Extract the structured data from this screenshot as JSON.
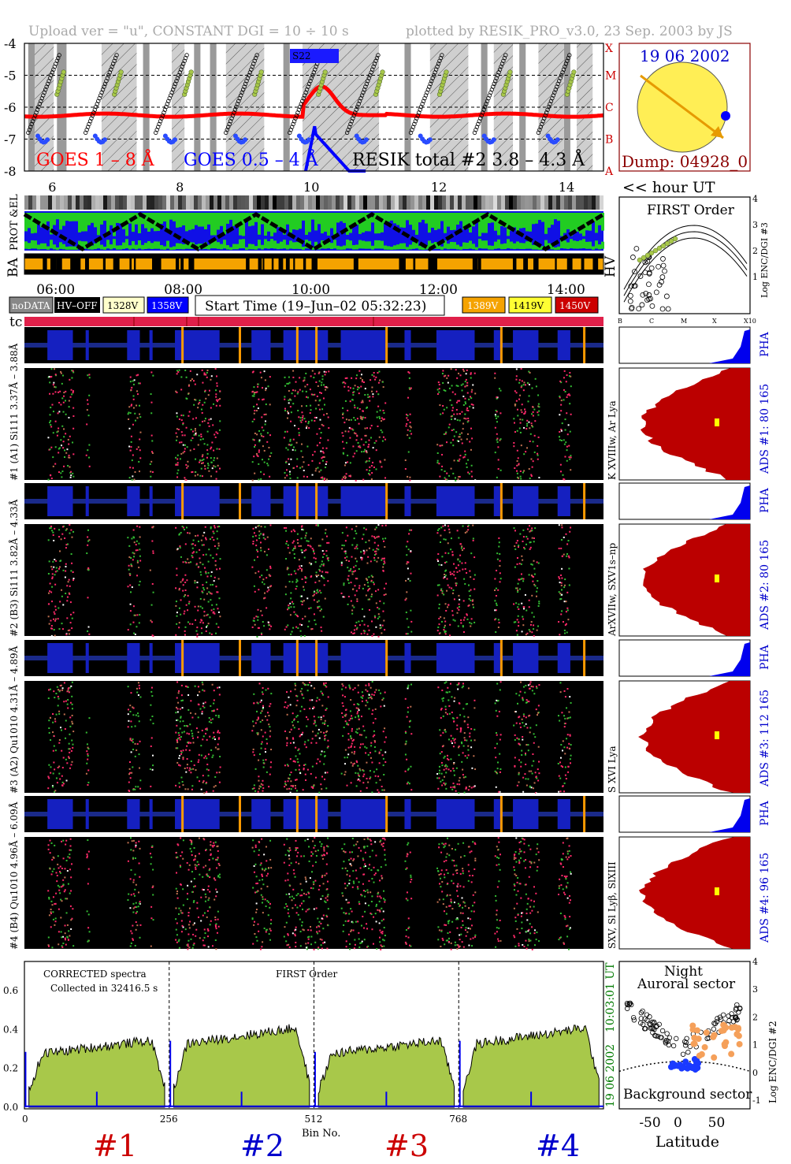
{
  "header": {
    "left": "Upload ver = \"u\", CONSTANT  DGI =  10 ÷  10 s",
    "right": "plotted by RESIK_PRO_v3.0, 23 Sep. 2003 by JS"
  },
  "goes": {
    "ylabels": [
      "-4",
      "-5",
      "-6",
      "-7",
      "-8"
    ],
    "class_labels": [
      "X",
      "M",
      "C",
      "B",
      "A"
    ],
    "legend_goes18": "GOES 1 – 8 Å",
    "legend_goes054": "GOES 0.5 – 4 Å",
    "legend_resik": "RESIK total #2  3.8 – 4.3 Å",
    "tag": "S22",
    "colors": {
      "goes18": "#ff0000",
      "goes054": "#0000ff",
      "resik": "#a8c84a"
    }
  },
  "sun": {
    "date": "19 06 2002",
    "dump": "Dump: 04928_0"
  },
  "time_axis": {
    "top_ticks": [
      "6",
      "8",
      "10",
      "12",
      "14"
    ],
    "hour_label": "<< hour UT",
    "bottom_ticks": [
      "06:00",
      "08:00",
      "10:00",
      "12:00",
      "14:00"
    ]
  },
  "side_labels": {
    "prot_el": "PROT &EL",
    "ba": "BA",
    "hv": "HV",
    "tc": "tc"
  },
  "legend": {
    "nodata": "noDATA",
    "hvoff": "HV–OFF",
    "v1328": "1328V",
    "v1358": "1358V",
    "start_time": "Start Time (19–Jun–02 05:32:23)",
    "v1389": "1389V",
    "v1419": "1419V",
    "v1450": "1450V"
  },
  "first_order": {
    "title": "FIRST Order",
    "yticks": [
      "4",
      "3",
      "2",
      "1"
    ],
    "ylabel": "Log ENC/DGI #3",
    "xticks": [
      "B",
      "C",
      "M",
      "X",
      "X10"
    ]
  },
  "channels": [
    {
      "pha_label": "#4 (B4) Qu1010 4.96Å – 6.09Å",
      "line_label": "SXV, Sl Lyβ, SlXIII",
      "ads": "ADS #4:   96 165",
      "pha": "PHA"
    },
    {
      "pha_label": "#3 (A2) Qu1010 4.31Å – 4.89Å",
      "line_label": "S XVI Lya",
      "ads": "ADS #3:   112 165",
      "pha": "PHA"
    },
    {
      "pha_label": "#2 (B3) Si111 3.82Å – 4.33Å",
      "line_label": "ArXVIIw, SXV1s–np",
      "ads": "ADS #2:   80 165",
      "pha": "PHA"
    },
    {
      "pha_label": "#1 (A1) Si111 3.37Å – 3.88Å",
      "line_label": "K XVIIIw, Ar Lya",
      "ads": "ADS #1:   80 165",
      "pha": "PHA"
    }
  ],
  "spectrum": {
    "note1": "CORRECTED spectra",
    "note2": "Collected in 32416.5 s",
    "note3": "FIRST Order",
    "yticks": [
      "0.6",
      "0.4",
      "0.2",
      "0.0"
    ],
    "xticks": [
      "0",
      "256",
      "512",
      "768"
    ],
    "xlabel": "Bin No.",
    "vert_time": "10:03:01 UT",
    "vert_date": "19 06 2002",
    "channel_ids": [
      "#1",
      "#2",
      "#3",
      "#4"
    ]
  },
  "map": {
    "night": "Night",
    "auroral": "Auroral sector",
    "background": "Background sector",
    "xticks": [
      "-50",
      "0",
      "50"
    ],
    "xlabel": "Latitude",
    "yticks": [
      "4",
      "3",
      "2",
      "1",
      "0",
      "-1"
    ],
    "ylabel": "Log ENC/DGI #2"
  },
  "chart_data": {
    "type": "line",
    "title": "",
    "xlabel": "Bin No.",
    "ylabel": "",
    "xlim": [
      0,
      1024
    ],
    "ylim": [
      0,
      0.75
    ],
    "segments": [
      {
        "name": "#1",
        "x_range": [
          0,
          256
        ],
        "level": 0.3
      },
      {
        "name": "#2",
        "x_range": [
          256,
          512
        ],
        "level": 0.36
      },
      {
        "name": "#3",
        "x_range": [
          512,
          768
        ],
        "level": 0.3
      },
      {
        "name": "#4",
        "x_range": [
          768,
          1024
        ],
        "level": 0.36
      }
    ]
  }
}
